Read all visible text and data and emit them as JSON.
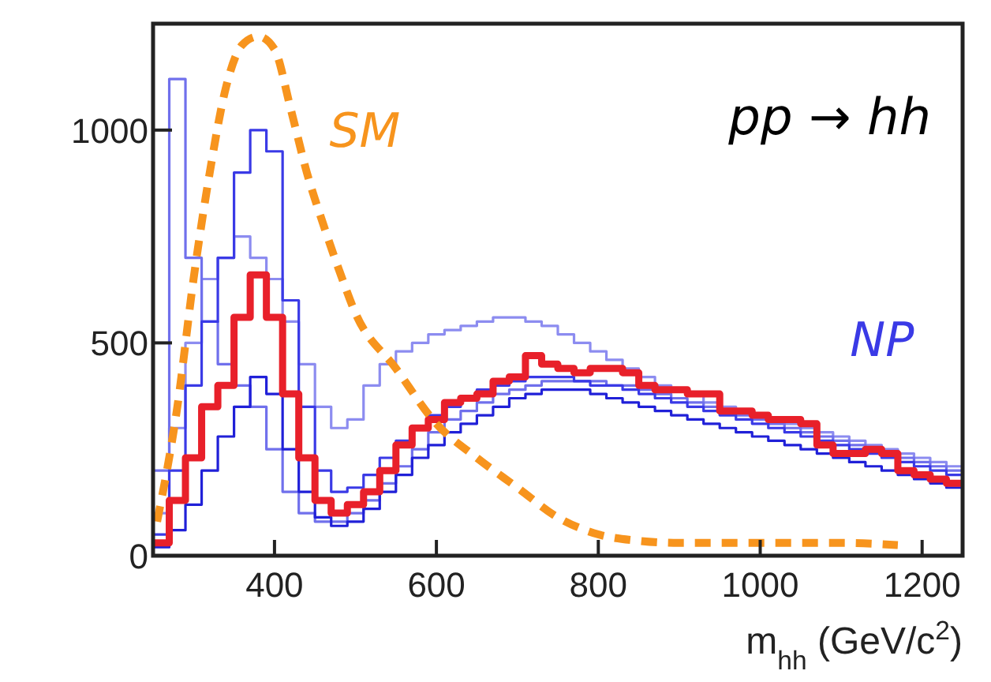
{
  "chart_data": {
    "type": "histogram",
    "xlabel": "m$_{hh}$ (GeV/c$^{2}$)",
    "annotations": [
      "pp → hh"
    ],
    "bins": [
      250,
      270,
      290,
      310,
      330,
      350,
      370,
      390,
      410,
      430,
      450,
      470,
      490,
      510,
      530,
      550,
      570,
      590,
      610,
      630,
      650,
      670,
      690,
      710,
      730,
      750,
      770,
      790,
      810,
      830,
      850,
      870,
      890,
      910,
      930,
      950,
      970,
      990,
      1010,
      1030,
      1050,
      1070,
      1090,
      1110,
      1130,
      1150,
      1170,
      1190,
      1210,
      1230,
      1250
    ],
    "xlim": [
      250,
      1250
    ],
    "xticks": [
      400,
      600,
      800,
      1000,
      1200
    ],
    "ylim": [
      0,
      1250
    ],
    "yticks": [
      0,
      500,
      1000
    ],
    "grid": false,
    "series": [
      {
        "color": "#8c8cf0",
        "values": [
          100,
          300,
          500,
          650,
          700,
          750,
          700,
          650,
          550,
          450,
          350,
          300,
          320,
          400,
          450,
          480,
          500,
          520,
          530,
          540,
          550,
          560,
          560,
          550,
          540,
          520,
          500,
          480,
          460,
          440,
          420,
          400,
          390,
          380,
          360,
          350,
          340,
          330,
          320,
          310,
          300,
          290,
          280,
          270,
          260,
          250,
          240,
          230,
          220,
          210
        ]
      },
      {
        "color": "#7070ec",
        "values": [
          200,
          1120,
          700,
          550,
          450,
          400,
          350,
          250,
          150,
          100,
          80,
          80,
          100,
          130,
          170,
          210,
          250,
          290,
          320,
          340,
          360,
          380,
          390,
          400,
          410,
          410,
          410,
          410,
          400,
          400,
          390,
          380,
          370,
          360,
          350,
          340,
          330,
          320,
          310,
          300,
          290,
          280,
          270,
          260,
          250,
          240,
          230,
          220,
          210,
          200
        ]
      },
      {
        "name": "NP",
        "color": "#3a3ae6",
        "values": [
          50,
          200,
          400,
          550,
          700,
          900,
          1000,
          950,
          600,
          350,
          200,
          150,
          160,
          190,
          230,
          270,
          300,
          330,
          350,
          370,
          390,
          400,
          410,
          420,
          420,
          420,
          410,
          400,
          400,
          390,
          380,
          370,
          360,
          350,
          340,
          330,
          320,
          310,
          300,
          290,
          280,
          270,
          260,
          250,
          240,
          230,
          220,
          210,
          200,
          190
        ]
      },
      {
        "color": "#2020d8",
        "values": [
          20,
          60,
          120,
          200,
          280,
          350,
          420,
          380,
          250,
          150,
          90,
          70,
          80,
          110,
          150,
          190,
          230,
          260,
          290,
          310,
          330,
          350,
          370,
          380,
          390,
          390,
          390,
          380,
          370,
          360,
          350,
          340,
          330,
          320,
          310,
          300,
          290,
          280,
          270,
          260,
          250,
          240,
          230,
          220,
          210,
          200,
          190,
          180,
          170,
          160
        ]
      },
      {
        "color": "#e8202a",
        "values": [
          30,
          130,
          230,
          350,
          400,
          560,
          660,
          560,
          380,
          230,
          130,
          100,
          120,
          150,
          200,
          260,
          300,
          320,
          360,
          370,
          380,
          410,
          420,
          470,
          450,
          440,
          430,
          440,
          440,
          430,
          400,
          390,
          390,
          380,
          380,
          340,
          340,
          330,
          320,
          320,
          310,
          260,
          240,
          240,
          250,
          240,
          200,
          190,
          180,
          170
        ]
      },
      {
        "name": "SM",
        "type": "line",
        "line_style": "dashed",
        "color": "#f7941d",
        "x": [
          255,
          280,
          300,
          320,
          340,
          360,
          380,
          400,
          420,
          440,
          460,
          480,
          500,
          550,
          600,
          650,
          700,
          750,
          800,
          850,
          900,
          1000,
          1100,
          1170
        ],
        "values": [
          80,
          350,
          650,
          900,
          1100,
          1200,
          1220,
          1190,
          1050,
          900,
          780,
          670,
          570,
          440,
          310,
          230,
          160,
          90,
          50,
          35,
          30,
          30,
          30,
          25
        ]
      }
    ]
  }
}
